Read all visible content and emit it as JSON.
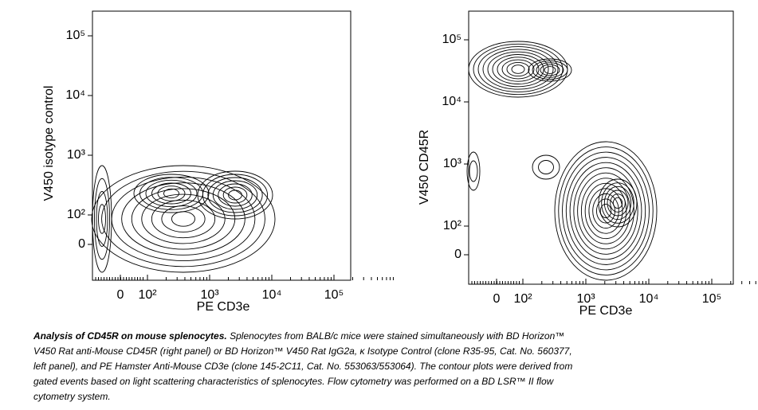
{
  "panels": [
    {
      "x_label": "PE CD3e",
      "y_label": "V450 isotype control",
      "xticks": [
        {
          "value": 0,
          "label": "0"
        },
        {
          "value": 100,
          "label": "10²"
        },
        {
          "value": 1000,
          "label": "10³"
        },
        {
          "value": 10000,
          "label": "10⁴"
        },
        {
          "value": 100000,
          "label": "10⁵"
        }
      ],
      "yticks": [
        {
          "value": 0,
          "label": "0"
        },
        {
          "value": 100,
          "label": "10²"
        },
        {
          "value": 1000,
          "label": "10³"
        },
        {
          "value": 10000,
          "label": "10⁴"
        },
        {
          "value": 100000,
          "label": "10⁵"
        }
      ]
    },
    {
      "x_label": "PE CD3e",
      "y_label": "V450 CD45R",
      "xticks": [
        {
          "value": 0,
          "label": "0"
        },
        {
          "value": 100,
          "label": "10²"
        },
        {
          "value": 1000,
          "label": "10³"
        },
        {
          "value": 10000,
          "label": "10⁴"
        },
        {
          "value": 100000,
          "label": "10⁵"
        }
      ],
      "yticks": [
        {
          "value": 0,
          "label": "0"
        },
        {
          "value": 100,
          "label": "10²"
        },
        {
          "value": 1000,
          "label": "10³"
        },
        {
          "value": 10000,
          "label": "10⁴"
        },
        {
          "value": 100000,
          "label": "10⁵"
        }
      ]
    }
  ],
  "caption": {
    "title": "Analysis of CD45R on mouse splenocytes.",
    "lines": [
      "Splenocytes from BALB/c mice were stained simultaneously with BD Horizon™",
      "V450 Rat anti-Mouse CD45R (right panel) or BD Horizon™ V450 Rat IgG2a, κ Isotype Control (clone R35-95, Cat. No. 560377,",
      "left panel), and PE Hamster Anti-Mouse CD3e (clone 145-2C11, Cat. No. 553063/553064). The contour plots were derived from",
      "gated events based on light scattering characteristics of splenocytes. Flow cytometry was performed on a BD LSR™ II flow",
      "cytometry system."
    ]
  }
}
